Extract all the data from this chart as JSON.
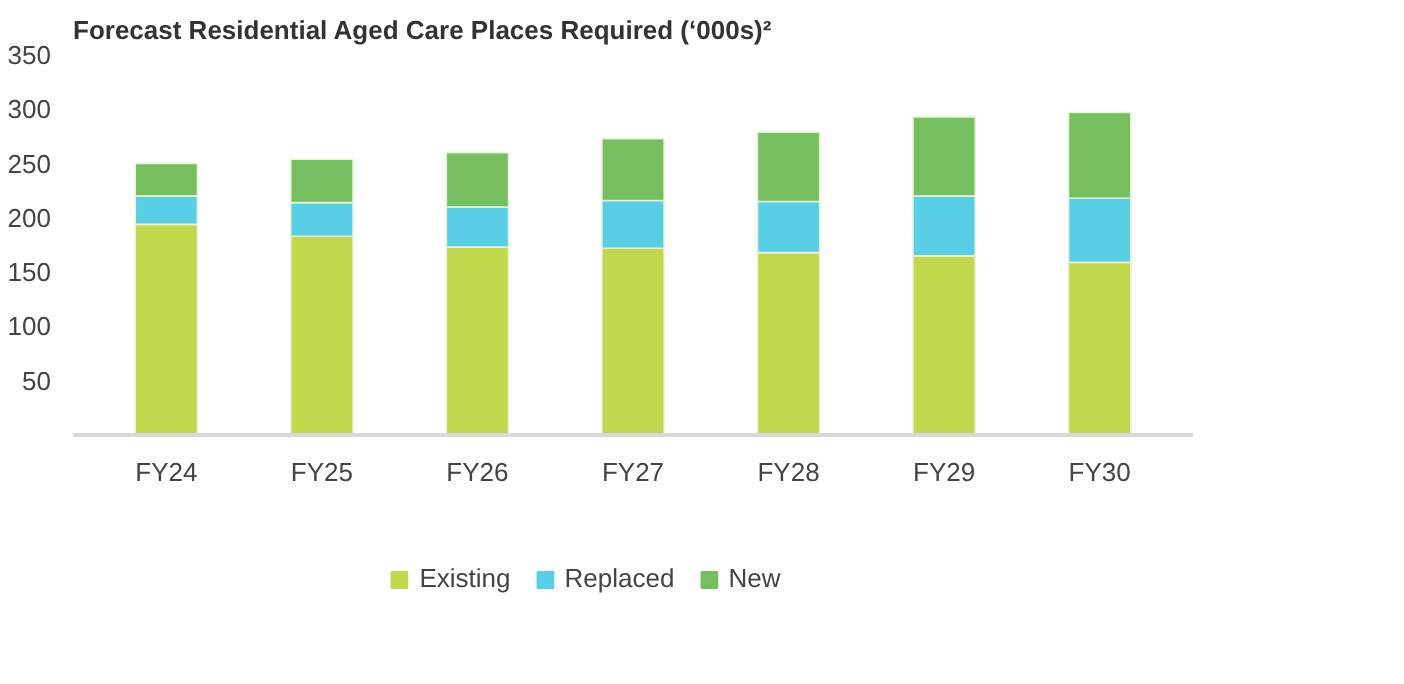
{
  "chart_data": {
    "type": "bar",
    "title": "Forecast Residential Aged Care Places Required (‘000s)²",
    "categories": [
      "FY24",
      "FY25",
      "FY26",
      "FY27",
      "FY28",
      "FY29",
      "FY30"
    ],
    "stacked": true,
    "series": [
      {
        "name": "Existing",
        "color": "#c1d84c",
        "values": [
          194,
          183,
          173,
          172,
          168,
          165,
          159
        ]
      },
      {
        "name": "Replaced",
        "color": "#58cfe5",
        "values": [
          26,
          31,
          37,
          44,
          47,
          55,
          59
        ]
      },
      {
        "name": "New",
        "color": "#75bf5f",
        "values": [
          30,
          40,
          50,
          57,
          64,
          73,
          79
        ]
      }
    ],
    "ylim": [
      0,
      350
    ],
    "yticks": [
      50,
      100,
      150,
      200,
      250,
      300,
      350
    ],
    "grid": false,
    "legend": "bottom"
  }
}
